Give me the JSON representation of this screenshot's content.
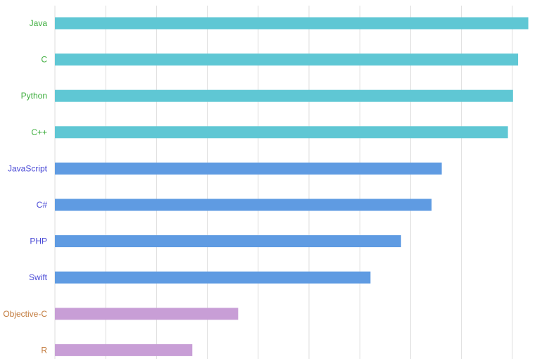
{
  "chart_data": {
    "type": "bar",
    "orientation": "horizontal",
    "title": "",
    "xlabel": "",
    "ylabel": "",
    "grid": true,
    "categories": [
      "Java",
      "C",
      "Python",
      "C++",
      "JavaScript",
      "C#",
      "PHP",
      "Swift",
      "Objective-C",
      "R"
    ],
    "values": [
      93,
      91,
      90,
      89,
      76,
      74,
      68,
      62,
      36,
      27
    ],
    "xlim": [
      0,
      95
    ],
    "groups": [
      {
        "members": [
          "Java",
          "C",
          "Python",
          "C++"
        ],
        "bar_color": "#5fc7d4",
        "label_color": "#3fae3f"
      },
      {
        "members": [
          "JavaScript",
          "C#",
          "PHP",
          "Swift"
        ],
        "bar_color": "#5f9be2",
        "label_color": "#4a4ad6"
      },
      {
        "members": [
          "Objective-C",
          "R"
        ],
        "bar_color": "#c89ed6",
        "label_color": "#c27a3c"
      }
    ],
    "gridline_color": "#dedede"
  }
}
